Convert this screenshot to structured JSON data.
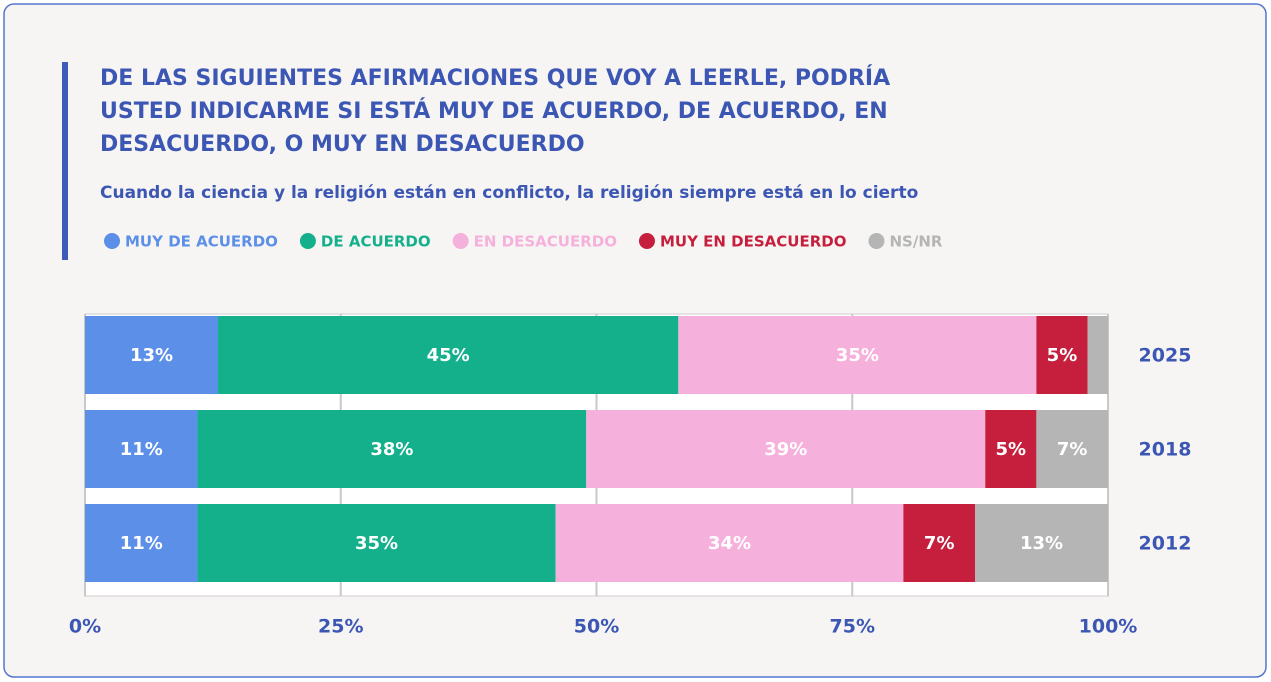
{
  "chart_data": {
    "type": "stacked-bar-horizontal",
    "title": [
      "DE LAS SIGUIENTES AFIRMACIONES QUE VOY A LEERLE, PODRÍA",
      "USTED INDICARME SI ESTÁ MUY DE ACUERDO, DE ACUERDO, EN",
      "DESACUERDO, O MUY EN DESACUERDO"
    ],
    "subtitle": "Cuando la ciencia y la religión están en conflicto, la religión siempre está en lo cierto",
    "categories": [
      "2025",
      "2018",
      "2012"
    ],
    "series": [
      {
        "name": "MUY DE ACUERDO",
        "color": "#5b8fe8",
        "values": [
          13,
          11,
          11
        ],
        "value_labels": [
          "13%",
          "11%",
          "11%"
        ]
      },
      {
        "name": "DE ACUERDO",
        "color": "#13b08b",
        "values": [
          45,
          38,
          35
        ],
        "value_labels": [
          "45%",
          "38%",
          "35%"
        ]
      },
      {
        "name": "EN DESACUERDO",
        "color": "#f6b0dc",
        "values": [
          35,
          39,
          34
        ],
        "value_labels": [
          "35%",
          "39%",
          "34%"
        ]
      },
      {
        "name": "MUY EN DESACUERDO",
        "color": "#c51f3d",
        "values": [
          5,
          5,
          7
        ],
        "value_labels": [
          "5%",
          "5%",
          "7%"
        ]
      },
      {
        "name": "NS/NR",
        "color": "#b5b5b5",
        "values": [
          2,
          7,
          13
        ],
        "value_labels": [
          null,
          "7%",
          "13%"
        ]
      }
    ],
    "xlim": [
      0,
      100
    ],
    "xticks": [
      {
        "value": 0,
        "label": "0%"
      },
      {
        "value": 25,
        "label": "25%"
      },
      {
        "value": 50,
        "label": "50%"
      },
      {
        "value": 75,
        "label": "75%"
      },
      {
        "value": 100,
        "label": "100%"
      }
    ],
    "grid": true
  }
}
